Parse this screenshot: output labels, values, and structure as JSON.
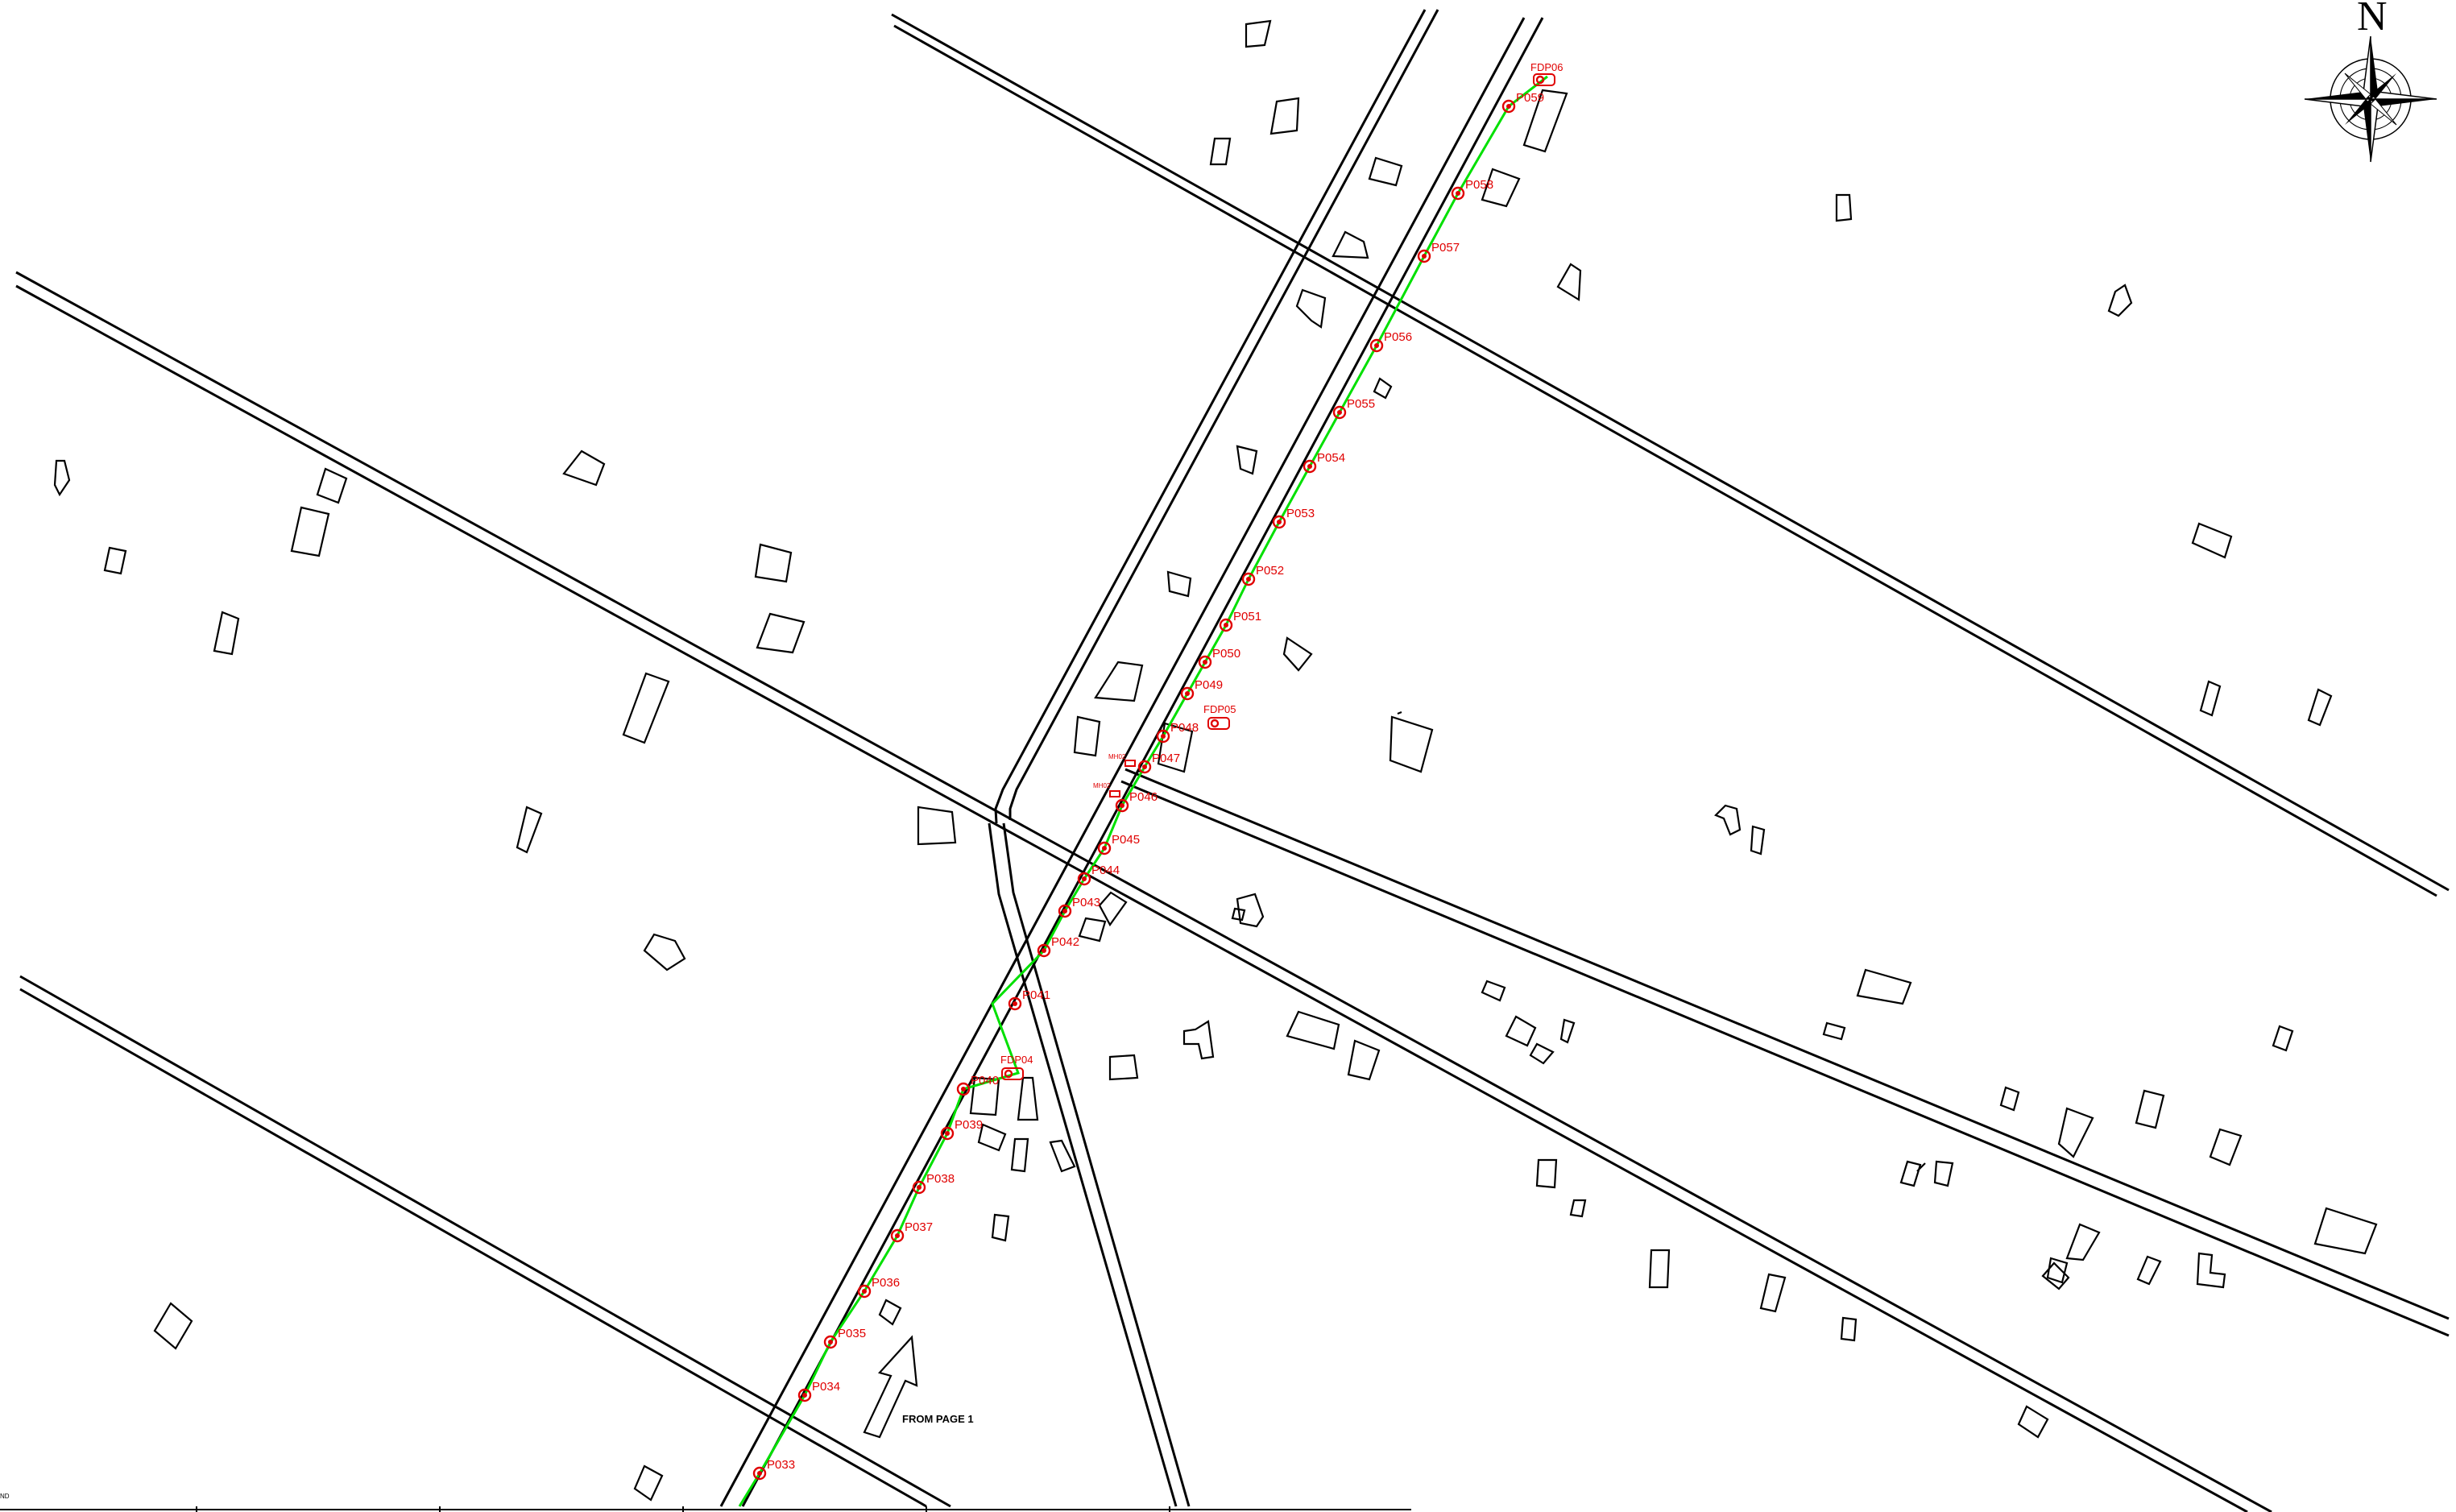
{
  "compass": {
    "north_label": "N"
  },
  "note": {
    "text": "FROM PAGE 1"
  },
  "corner_text": "ND",
  "poles": [
    {
      "label": "P033"
    },
    {
      "label": "P034"
    },
    {
      "label": "P035"
    },
    {
      "label": "P036"
    },
    {
      "label": "P037"
    },
    {
      "label": "P038"
    },
    {
      "label": "P039"
    },
    {
      "label": "P040"
    },
    {
      "label": "P041"
    },
    {
      "label": "P042"
    },
    {
      "label": "P043"
    },
    {
      "label": "P044"
    },
    {
      "label": "P045"
    },
    {
      "label": "P046"
    },
    {
      "label": "P047"
    },
    {
      "label": "P048"
    },
    {
      "label": "P049"
    },
    {
      "label": "P050"
    },
    {
      "label": "P051"
    },
    {
      "label": "P052"
    },
    {
      "label": "P053"
    },
    {
      "label": "P054"
    },
    {
      "label": "P055"
    },
    {
      "label": "P056"
    },
    {
      "label": "P057"
    },
    {
      "label": "P058"
    },
    {
      "label": "P059"
    }
  ],
  "fdps": [
    {
      "label": "FDP04"
    },
    {
      "label": "FDP05"
    },
    {
      "label": "FDP06"
    }
  ],
  "manholes": [
    {
      "label": "MH02"
    },
    {
      "label": "MH02"
    }
  ],
  "colors": {
    "route": "#00e000",
    "equipment": "#e00000",
    "linework": "#000000"
  }
}
